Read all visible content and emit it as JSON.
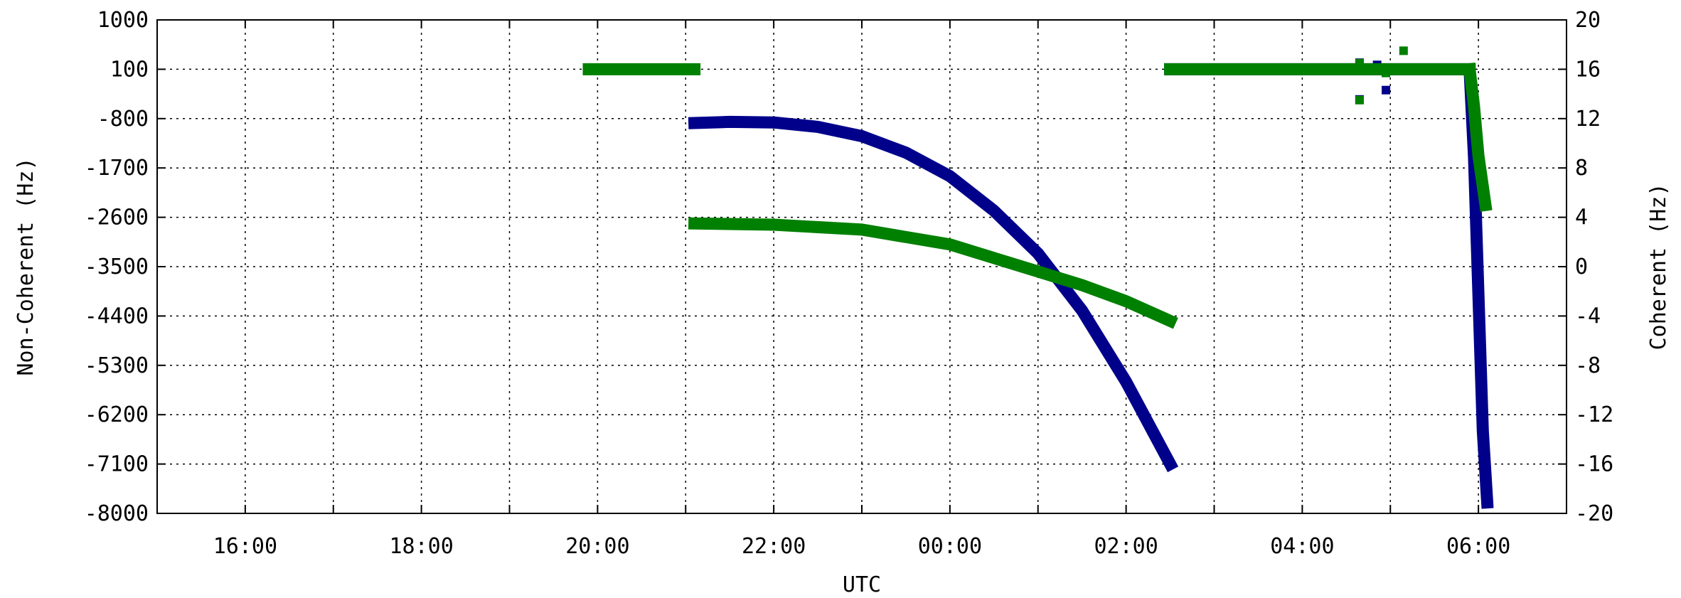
{
  "chart_data": {
    "type": "scatter",
    "xlabel": "UTC",
    "ylabel_left": "Non-Coherent (Hz)",
    "ylabel_right": "Coherent (Hz)",
    "grid": true,
    "x_ticks": [
      "16:00",
      "18:00",
      "20:00",
      "22:00",
      "00:00",
      "02:00",
      "04:00",
      "06:00"
    ],
    "xlim_hours": [
      15,
      31
    ],
    "y_left": {
      "min": -8000,
      "max": 1000,
      "ticks": [
        1000,
        100,
        -800,
        -1700,
        -2600,
        -3500,
        -4400,
        -5300,
        -6200,
        -7100,
        -8000
      ]
    },
    "y_right": {
      "min": -20,
      "max": 20,
      "ticks": [
        20,
        16,
        12,
        8,
        4,
        0,
        -4,
        -8,
        -12,
        -16,
        -20
      ]
    },
    "colors": {
      "non_coherent": "#00008b",
      "coherent": "#008000"
    },
    "series": [
      {
        "key": "non_coherent",
        "axis": "left",
        "segments": [
          {
            "x": [
              21.1,
              21.5,
              22.0,
              22.5,
              23.0,
              23.5,
              24.0,
              24.5,
              25.0,
              25.5,
              26.0,
              26.5
            ],
            "y": [
              -880,
              -860,
              -870,
              -950,
              -1120,
              -1420,
              -1850,
              -2480,
              -3260,
              -4300,
              -5600,
              -7100
            ]
          },
          {
            "x": [
              26.5,
              27.0,
              27.5,
              28.0,
              28.5,
              29.0,
              29.5,
              29.9
            ],
            "y": [
              100,
              100,
              100,
              100,
              100,
              100,
              100,
              100
            ]
          },
          {
            "x": [
              29.9,
              29.95,
              30.0,
              30.05,
              30.1
            ],
            "y": [
              100,
              -1500,
              -4000,
              -6500,
              -7800
            ]
          }
        ],
        "points": [
          {
            "x": 28.65,
            "y": 220
          },
          {
            "x": 28.65,
            "y": -450
          },
          {
            "x": 28.95,
            "y": -280
          },
          {
            "x": 28.85,
            "y": 180
          }
        ]
      },
      {
        "key": "coherent",
        "axis": "right",
        "segments": [
          {
            "x": [
              19.9,
              20.5,
              21.1
            ],
            "y": [
              16,
              16,
              16
            ]
          },
          {
            "x": [
              21.1,
              22.0,
              23.0,
              24.0,
              25.0,
              25.5,
              26.0,
              26.5
            ],
            "y": [
              3.5,
              3.4,
              3.0,
              1.8,
              -0.4,
              -1.5,
              -2.8,
              -4.4
            ]
          },
          {
            "x": [
              26.5,
              27.0,
              27.5,
              28.0,
              28.5,
              29.0,
              29.5,
              29.9
            ],
            "y": [
              16,
              16,
              16,
              16,
              16,
              16,
              16,
              16
            ]
          },
          {
            "x": [
              29.9,
              29.95,
              30.0,
              30.08
            ],
            "y": [
              16,
              13,
              9,
              5
            ]
          }
        ],
        "points": [
          {
            "x": 28.65,
            "y": 16.5
          },
          {
            "x": 28.65,
            "y": 13.5
          },
          {
            "x": 29.15,
            "y": 17.5
          },
          {
            "x": 28.95,
            "y": 15.7
          }
        ]
      }
    ]
  }
}
